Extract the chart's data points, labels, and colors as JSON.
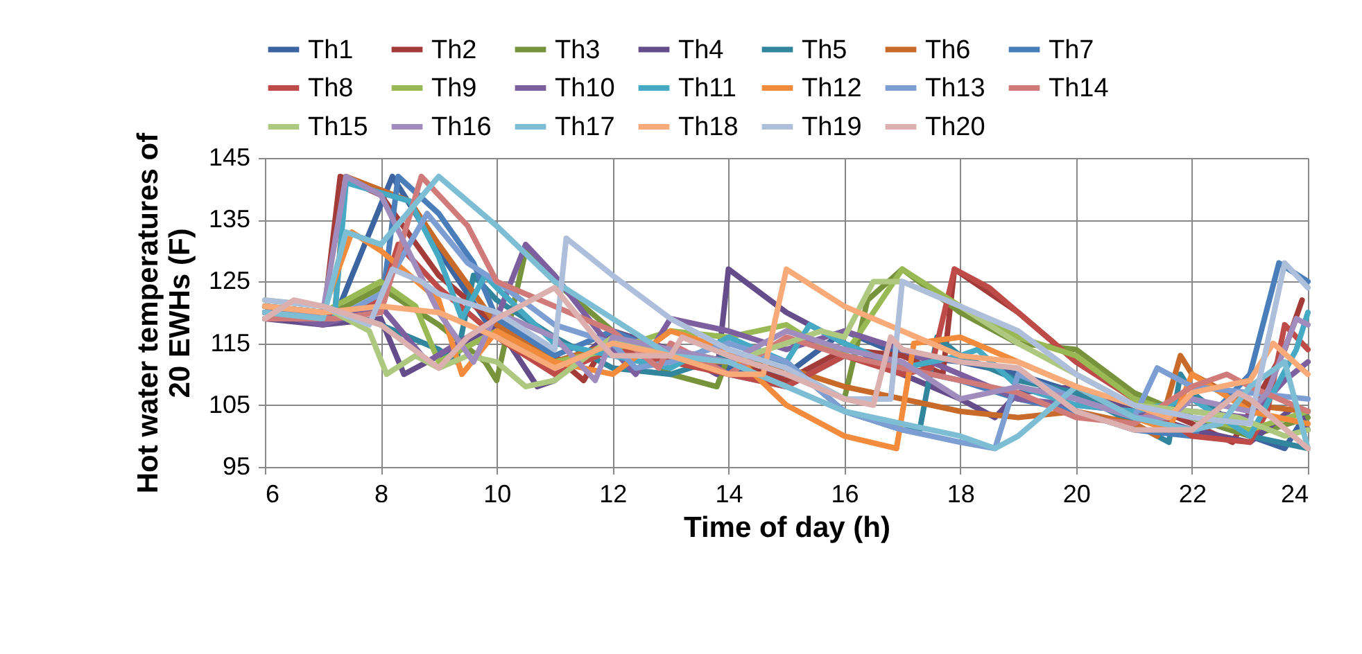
{
  "chart_data": {
    "type": "line",
    "xlabel": "Time of day (h)",
    "ylabel": "Hot water temperatures of\n20 EWHs (F)",
    "xlim": [
      6,
      24
    ],
    "ylim": [
      95,
      145
    ],
    "xticks": [
      6,
      8,
      10,
      12,
      14,
      16,
      18,
      20,
      22,
      24
    ],
    "yticks": [
      95,
      105,
      115,
      125,
      135,
      145
    ],
    "grid": true,
    "legend": "top",
    "marker": "none",
    "line_style": "solid",
    "series": [
      {
        "name": "Th1",
        "color": "#3b64a0",
        "x": [
          6,
          7.2,
          8.2,
          9,
          10,
          11,
          12,
          13,
          14,
          15,
          16,
          17,
          18,
          19,
          20,
          21,
          22,
          23,
          23.6,
          24
        ],
        "values": [
          121,
          119,
          142,
          130,
          116,
          112,
          115,
          113,
          111,
          110,
          117,
          113,
          112,
          110,
          107,
          104,
          103,
          100,
          98,
          104
        ]
      },
      {
        "name": "Th2",
        "color": "#a33b38",
        "x": [
          6,
          7,
          7.3,
          8,
          9,
          10,
          11,
          11.5,
          12,
          13,
          14,
          15,
          16,
          17,
          17.7,
          17.9,
          19,
          20,
          21,
          22,
          22.7,
          23.6,
          23.9
        ],
        "values": [
          120,
          118,
          142,
          139,
          126,
          118,
          113,
          109,
          117,
          114,
          112,
          109,
          114,
          113,
          110,
          127,
          120,
          112,
          106,
          102,
          99,
          114,
          122
        ]
      },
      {
        "name": "Th3",
        "color": "#77933c",
        "x": [
          6,
          7,
          8,
          9,
          9.8,
          10,
          10.5,
          11,
          12,
          13,
          13.8,
          14,
          15,
          16,
          16.4,
          17,
          18,
          19,
          20,
          21,
          22,
          23,
          24
        ],
        "values": [
          120,
          119,
          124,
          118,
          112,
          109,
          130,
          125,
          117,
          110,
          108,
          113,
          111,
          106,
          122,
          127,
          120,
          115,
          114,
          107,
          103,
          100,
          103
        ]
      },
      {
        "name": "Th4",
        "color": "#644d8a",
        "x": [
          6,
          7,
          8,
          8.4,
          9,
          10,
          10.7,
          11,
          12,
          13,
          13.8,
          14,
          15,
          16,
          17,
          18,
          18.6,
          19,
          20,
          21,
          22,
          23,
          23.8,
          24
        ],
        "values": [
          119,
          118,
          119,
          110,
          113,
          118,
          108,
          109,
          117,
          114,
          110,
          127,
          120,
          115,
          110,
          106,
          103,
          107,
          108,
          104,
          101,
          99,
          105,
          101
        ]
      },
      {
        "name": "Th5",
        "color": "#31859c",
        "x": [
          6,
          7,
          7.7,
          8,
          9,
          9.3,
          9.6,
          10,
          11,
          12,
          13,
          14,
          15,
          16,
          17,
          17.3,
          17.6,
          18,
          19,
          20,
          21,
          21.6,
          21.8,
          22,
          23,
          24
        ],
        "values": [
          120,
          119,
          119,
          118,
          114,
          112,
          126,
          122,
          116,
          111,
          110,
          113,
          112,
          104,
          101,
          101,
          116,
          113,
          109,
          107,
          102,
          99,
          110,
          107,
          100,
          98
        ]
      },
      {
        "name": "Th6",
        "color": "#c86b2a",
        "x": [
          6,
          7.2,
          7.4,
          8.5,
          9,
          10,
          11,
          12,
          13,
          14,
          15,
          16,
          17,
          18,
          19,
          20,
          21,
          21.4,
          21.8,
          22,
          23,
          24
        ],
        "values": [
          121,
          119,
          142,
          138,
          131,
          118,
          112,
          115,
          112,
          112,
          111,
          108,
          106,
          104,
          103,
          104,
          102,
          100,
          113,
          110,
          105,
          104
        ]
      },
      {
        "name": "Th7",
        "color": "#4a7ebb",
        "x": [
          6,
          7,
          8,
          8.3,
          9,
          9.6,
          10,
          11,
          12,
          13,
          14,
          15,
          16,
          17,
          18,
          19,
          20,
          21,
          22,
          23,
          23.5,
          24
        ],
        "values": [
          121,
          120,
          120,
          142,
          136,
          128,
          119,
          113,
          117,
          113,
          110,
          108,
          113,
          111,
          109,
          106,
          104,
          101,
          100,
          110,
          128,
          125
        ]
      },
      {
        "name": "Th8",
        "color": "#be4b48",
        "x": [
          6,
          7,
          8,
          8.3,
          9,
          10,
          11,
          12,
          13,
          14,
          15,
          16,
          17,
          17.5,
          17.9,
          18.5,
          19,
          20,
          21,
          22,
          23,
          23.3,
          23.6,
          24
        ],
        "values": [
          120,
          119,
          122,
          131,
          124,
          116,
          110,
          114,
          112,
          110,
          108,
          113,
          110,
          111,
          127,
          124,
          120,
          112,
          106,
          100,
          99,
          104,
          118,
          114
        ]
      },
      {
        "name": "Th9",
        "color": "#98b954",
        "x": [
          6,
          7,
          8,
          8.6,
          9,
          10,
          11,
          12,
          13,
          14,
          15,
          15.5,
          16,
          17,
          18,
          19,
          20,
          21,
          22,
          23,
          24
        ],
        "values": [
          121,
          120,
          125,
          121,
          112,
          117,
          112,
          114,
          117,
          116,
          118,
          115,
          113,
          127,
          121,
          116,
          113,
          106,
          103,
          101,
          104
        ]
      },
      {
        "name": "Th10",
        "color": "#7d5fa0",
        "x": [
          6,
          7,
          8,
          8.8,
          9.5,
          10,
          10.5,
          11,
          12,
          12.4,
          13,
          14,
          15,
          16,
          17,
          18,
          19,
          20,
          21,
          22,
          23,
          23.6,
          24
        ],
        "values": [
          120,
          118,
          121,
          112,
          116,
          119,
          131,
          126,
          114,
          110,
          119,
          117,
          114,
          117,
          114,
          110,
          106,
          105,
          104,
          104,
          103,
          109,
          112
        ]
      },
      {
        "name": "Th11",
        "color": "#46aac5",
        "x": [
          6,
          7.2,
          7.4,
          8.5,
          9,
          9.4,
          9.8,
          10,
          11,
          12,
          13,
          14,
          15,
          15.4,
          16,
          17,
          18,
          18.3,
          19,
          20,
          21,
          22,
          23,
          23.8,
          24
        ],
        "values": [
          119,
          119,
          141,
          138,
          129,
          119,
          126,
          124,
          115,
          113,
          111,
          116,
          112,
          118,
          115,
          111,
          113,
          114,
          108,
          105,
          104,
          106,
          100,
          114,
          120
        ]
      },
      {
        "name": "Th12",
        "color": "#f38b3d",
        "x": [
          6,
          7,
          7.5,
          8,
          9,
          9.4,
          10,
          11,
          12,
          13,
          14,
          15,
          16,
          16.9,
          17.2,
          18,
          19,
          20,
          21,
          21.6,
          22,
          23,
          24
        ],
        "values": [
          121,
          120,
          133,
          130,
          122,
          110,
          117,
          112,
          110,
          117,
          114,
          105,
          100,
          98,
          115,
          116,
          112,
          108,
          103,
          101,
          110,
          104,
          102
        ]
      },
      {
        "name": "Th13",
        "color": "#7d9ed3",
        "x": [
          6,
          7.2,
          8,
          8.8,
          9.5,
          10,
          11,
          12,
          12.4,
          13,
          14,
          15,
          16,
          17,
          18,
          18.6,
          19,
          20,
          21,
          21.4,
          22,
          23,
          24
        ],
        "values": [
          120,
          119,
          123,
          136,
          128,
          125,
          118,
          115,
          111,
          112,
          115,
          112,
          104,
          101,
          99,
          98,
          110,
          106,
          103,
          111,
          108,
          107,
          106
        ]
      },
      {
        "name": "Th14",
        "color": "#d07b79",
        "x": [
          6,
          7.2,
          8,
          8.7,
          9.5,
          10,
          11,
          12,
          12.8,
          13,
          14,
          15,
          16,
          17,
          18,
          19,
          20,
          21,
          22,
          22.6,
          23,
          24
        ],
        "values": [
          119,
          119,
          120,
          142,
          134,
          125,
          121,
          117,
          111,
          115,
          110,
          116,
          113,
          111,
          109,
          107,
          103,
          102,
          108,
          110,
          108,
          104
        ]
      },
      {
        "name": "Th15",
        "color": "#aec97f",
        "x": [
          6,
          7,
          7.8,
          8.1,
          8.6,
          9,
          9.5,
          10,
          10.5,
          11,
          12,
          13,
          14,
          15,
          15.6,
          16,
          16.5,
          17,
          18,
          19,
          20,
          21,
          22,
          22.8,
          23.6,
          24
        ],
        "values": [
          122,
          121,
          117,
          110,
          113,
          111,
          113,
          112,
          108,
          109,
          116,
          113,
          112,
          115,
          117,
          116,
          125,
          125,
          121,
          115,
          110,
          105,
          104,
          103,
          100,
          101
        ]
      },
      {
        "name": "Th16",
        "color": "#a08dbd",
        "x": [
          6,
          7,
          7.4,
          8,
          9,
          9.6,
          10,
          11,
          11.7,
          12,
          13,
          14,
          15,
          16,
          17,
          18,
          19,
          20,
          21,
          21.6,
          22,
          23,
          23.3,
          23.8,
          24
        ],
        "values": [
          121,
          120,
          142,
          139,
          120,
          112,
          120,
          116,
          109,
          116,
          114,
          112,
          117,
          114,
          112,
          106,
          108,
          106,
          103,
          103,
          106,
          104,
          107,
          119,
          118
        ]
      },
      {
        "name": "Th17",
        "color": "#7dbed4",
        "x": [
          6,
          7,
          7.4,
          8,
          9,
          10,
          11,
          12,
          13,
          14,
          15,
          16,
          17,
          18,
          18.6,
          19,
          20,
          21,
          22,
          22.5,
          23,
          23.6,
          24
        ],
        "values": [
          120,
          119,
          133,
          131,
          142,
          134,
          125,
          119,
          113,
          112,
          108,
          104,
          102,
          100,
          98,
          100,
          108,
          103,
          101,
          102,
          108,
          112,
          98
        ]
      },
      {
        "name": "Th18",
        "color": "#f8ab79",
        "x": [
          6,
          7,
          8,
          9,
          10,
          11,
          12,
          13,
          14,
          14.6,
          15,
          16,
          17,
          18,
          19,
          20,
          21,
          21.6,
          22,
          23,
          23.4,
          24
        ],
        "values": [
          121,
          120,
          121,
          120,
          116,
          111,
          115,
          113,
          110,
          110,
          127,
          121,
          117,
          113,
          112,
          108,
          105,
          103,
          107,
          109,
          115,
          110
        ]
      },
      {
        "name": "Th19",
        "color": "#aebfdb",
        "x": [
          6,
          7,
          7.8,
          8.2,
          8.7,
          9,
          10,
          11,
          11.2,
          12,
          13,
          14,
          15,
          16,
          16.8,
          17,
          18,
          19,
          20,
          21,
          22,
          23,
          23.6,
          24
        ],
        "values": [
          122,
          121,
          118,
          127,
          125,
          123,
          120,
          114,
          132,
          126,
          119,
          114,
          111,
          106,
          106,
          125,
          121,
          117,
          110,
          105,
          103,
          102,
          128,
          124
        ]
      },
      {
        "name": "Th20",
        "color": "#dbb0af",
        "x": [
          6,
          6.5,
          7,
          8,
          9,
          9.5,
          10,
          11,
          11.7,
          12,
          13,
          13.2,
          14,
          15,
          16,
          16.5,
          16.8,
          17,
          18,
          19,
          20,
          21,
          22,
          22.8,
          23,
          24
        ],
        "values": [
          119,
          122,
          121,
          118,
          111,
          116,
          119,
          124,
          116,
          113,
          113,
          116,
          113,
          110,
          106,
          105,
          116,
          114,
          112,
          111,
          104,
          101,
          101,
          107,
          106,
          98
        ]
      }
    ]
  }
}
